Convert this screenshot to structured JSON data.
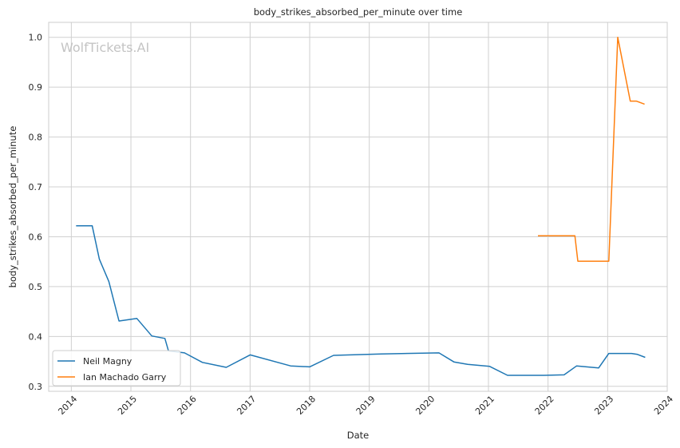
{
  "chart_data": {
    "type": "line",
    "title": "body_strikes_absorbed_per_minute over time",
    "xlabel": "Date",
    "ylabel": "body_strikes_absorbed_per_minute",
    "watermark": "WolfTickets.AI",
    "xlim": [
      2013.62,
      2024.0
    ],
    "ylim": [
      0.29,
      1.03
    ],
    "x_ticks": [
      2014,
      2015,
      2016,
      2017,
      2018,
      2019,
      2020,
      2021,
      2022,
      2023,
      2024
    ],
    "x_tick_labels": [
      "2014",
      "2015",
      "2016",
      "2017",
      "2018",
      "2019",
      "2020",
      "2021",
      "2022",
      "2023",
      "2024"
    ],
    "y_ticks": [
      0.3,
      0.4,
      0.5,
      0.6,
      0.7,
      0.8,
      0.9,
      1.0
    ],
    "y_tick_labels": [
      "0.3",
      "0.4",
      "0.5",
      "0.6",
      "0.7",
      "0.8",
      "0.9",
      "1.0"
    ],
    "grid": true,
    "legend_position": "bottom-left",
    "series": [
      {
        "name": "Neil Magny",
        "color": "#1f77b4",
        "points": [
          [
            2014.08,
            0.622
          ],
          [
            2014.35,
            0.622
          ],
          [
            2014.47,
            0.555
          ],
          [
            2014.63,
            0.51
          ],
          [
            2014.8,
            0.431
          ],
          [
            2015.1,
            0.436
          ],
          [
            2015.35,
            0.401
          ],
          [
            2015.57,
            0.396
          ],
          [
            2015.63,
            0.371
          ],
          [
            2015.9,
            0.367
          ],
          [
            2016.2,
            0.348
          ],
          [
            2016.6,
            0.338
          ],
          [
            2017.0,
            0.363
          ],
          [
            2017.68,
            0.341
          ],
          [
            2018.0,
            0.339
          ],
          [
            2018.4,
            0.362
          ],
          [
            2019.2,
            0.365
          ],
          [
            2020.17,
            0.367
          ],
          [
            2020.42,
            0.349
          ],
          [
            2020.65,
            0.344
          ],
          [
            2021.02,
            0.34
          ],
          [
            2021.32,
            0.322
          ],
          [
            2021.93,
            0.322
          ],
          [
            2022.27,
            0.323
          ],
          [
            2022.48,
            0.341
          ],
          [
            2022.85,
            0.337
          ],
          [
            2023.02,
            0.366
          ],
          [
            2023.4,
            0.366
          ],
          [
            2023.5,
            0.364
          ],
          [
            2023.63,
            0.358
          ]
        ]
      },
      {
        "name": "Ian Machado Garry",
        "color": "#ff7f0e",
        "points": [
          [
            2021.83,
            0.602
          ],
          [
            2022.45,
            0.602
          ],
          [
            2022.5,
            0.551
          ],
          [
            2023.02,
            0.551
          ],
          [
            2023.17,
            1.0
          ],
          [
            2023.38,
            0.872
          ],
          [
            2023.48,
            0.872
          ],
          [
            2023.62,
            0.866
          ]
        ]
      }
    ]
  }
}
